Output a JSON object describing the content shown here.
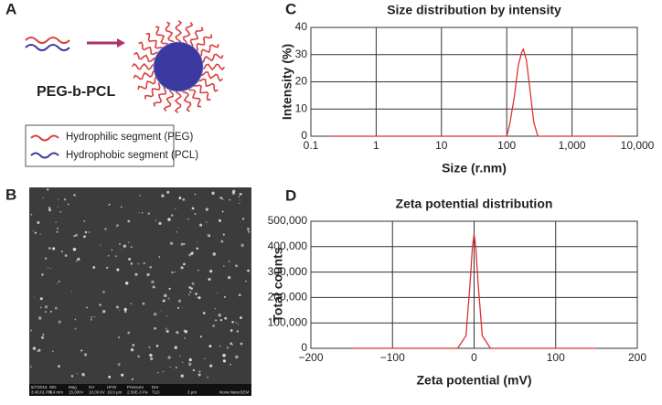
{
  "panels": {
    "a": "A",
    "b": "B",
    "c": "C",
    "d": "D"
  },
  "schematic": {
    "polymer": "PEG-b-PCL",
    "legend": [
      "Hydrophilic segment (PEG)",
      "Hydrophobic segment (PCL)"
    ]
  },
  "sem_bar": [
    "6/7/2016",
    "3:46:01 PM",
    "WD",
    "5.4 mm",
    "Mag",
    "15,000×",
    "HV",
    "10.00 kV",
    "HFW",
    "19.9 μm",
    "Pressure",
    "2.59E-3 Pa",
    "Det",
    "TLD",
    "3 μm",
    "Nova NanoSEM"
  ],
  "chart_data": [
    {
      "type": "line",
      "title": "Size distribution by intensity",
      "x_label": "Size (r.nm)",
      "y_label": "Intensity (%)",
      "xlog": true,
      "grid": true,
      "xlim": [
        0.1,
        10000
      ],
      "xticks": [
        0.1,
        1,
        10,
        100,
        {
          "value": 1000,
          "label": "1,000"
        },
        {
          "value": 10000,
          "label": "10,000"
        }
      ],
      "ylim": [
        0,
        40
      ],
      "yticks": [
        0,
        10,
        20,
        30,
        40
      ],
      "x": [
        0.2,
        100,
        110,
        130,
        150,
        170,
        180,
        200,
        230,
        260,
        300,
        5000
      ],
      "series": [
        {
          "color": "#e03030",
          "values": [
            0,
            0,
            4,
            14,
            26,
            31,
            32,
            28,
            16,
            5,
            0,
            0
          ]
        }
      ]
    },
    {
      "type": "line",
      "title": "Zeta potential distribution",
      "x_label": "Zeta potential (mV)",
      "y_label": "Total counts",
      "xlog": false,
      "grid": true,
      "xlim": [
        -200,
        200
      ],
      "xticks": [
        {
          "value": -200,
          "label": "−200"
        },
        {
          "value": -100,
          "label": "−100"
        },
        0,
        100,
        200
      ],
      "ylim": [
        0,
        500000
      ],
      "yticks": [
        0,
        {
          "value": 100000,
          "label": "100,000"
        },
        {
          "value": 200000,
          "label": "200,000"
        },
        {
          "value": 300000,
          "label": "300,000"
        },
        {
          "value": 400000,
          "label": "400,000"
        },
        {
          "value": 500000,
          "label": "500,000"
        }
      ],
      "x": [
        -150,
        -20,
        -10,
        -5,
        -2,
        0,
        2,
        5,
        10,
        20,
        150
      ],
      "series": [
        {
          "color": "#e03030",
          "values": [
            0,
            0,
            50000,
            250000,
            400000,
            450000,
            400000,
            250000,
            50000,
            0,
            0
          ]
        }
      ]
    }
  ]
}
